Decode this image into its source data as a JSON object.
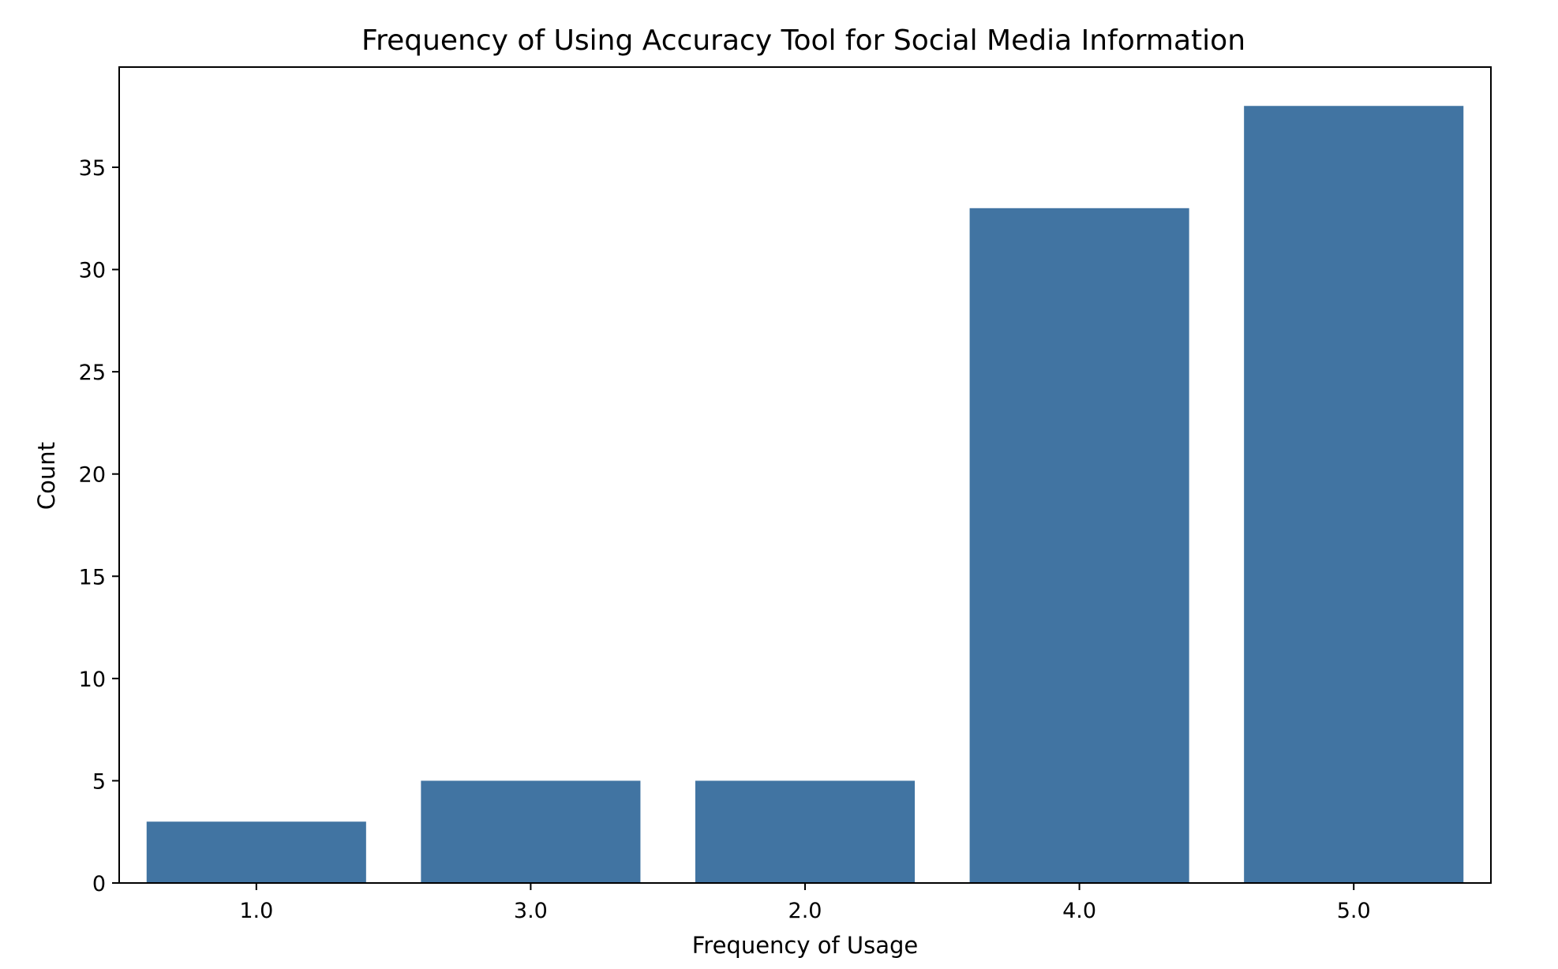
{
  "chart_data": {
    "type": "bar",
    "title": "Frequency of Using Accuracy Tool for Social Media Information",
    "xlabel": "Frequency of Usage",
    "ylabel": "Count",
    "categories": [
      "1.0",
      "3.0",
      "2.0",
      "4.0",
      "5.0"
    ],
    "values": [
      3,
      5,
      5,
      33,
      38
    ],
    "ylim": [
      0,
      39.9
    ],
    "yticks": [
      0,
      5,
      10,
      15,
      20,
      25,
      30,
      35
    ],
    "grid": false,
    "bar_color": "#4174a2"
  }
}
